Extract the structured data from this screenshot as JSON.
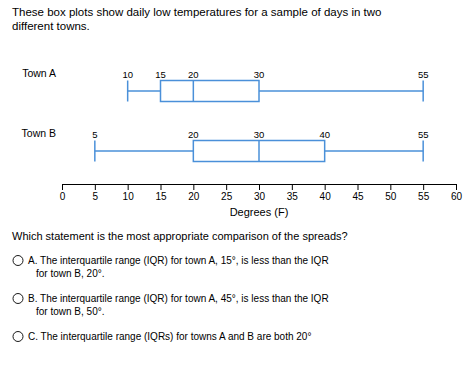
{
  "chart_data": {
    "type": "box",
    "title": "These box plots show daily low temperatures for a sample of days in two\ndifferent towns.",
    "series": [
      {
        "name": "Town A",
        "min": 10,
        "q1": 15,
        "median": 20,
        "q3": 30,
        "max": 55
      },
      {
        "name": "Town B",
        "min": 5,
        "q1": 20,
        "median": 30,
        "q3": 40,
        "max": 55
      }
    ],
    "color": "#4a90d9",
    "xlim": [
      0,
      60
    ],
    "xticks": [
      0,
      5,
      10,
      15,
      20,
      25,
      30,
      35,
      40,
      45,
      50,
      55,
      60
    ],
    "xlabel": "Degrees (F)",
    "data_labels": true,
    "grid": false,
    "annotations": [
      "Which statement is the most appropriate comparison of the spreads?",
      "A.  The interquartile range (IQR) for town A, 15°, is less than the IQR\nfor town B, 20°.",
      "B.  The interquartile range (IQR) for town A, 45°, is less than the IQR\nfor town B, 50°.",
      "C.  The interquartile range (IQRs) for towns A and B are both 20°"
    ]
  }
}
